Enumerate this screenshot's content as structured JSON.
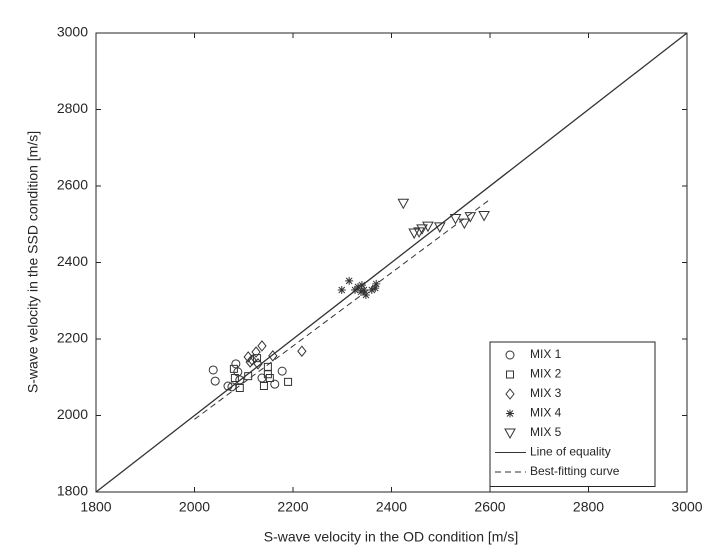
{
  "chart_data": {
    "type": "scatter",
    "x_label": "S-wave velocity in the OD condition [m/s]",
    "y_label": "S-wave velocity in the SSD condition [m/s]",
    "xlim": [
      1800,
      3000
    ],
    "ylim": [
      1800,
      3000
    ],
    "xticks": [
      1800,
      2000,
      2200,
      2400,
      2600,
      2800,
      3000
    ],
    "yticks": [
      1800,
      2000,
      2200,
      2400,
      2600,
      2800,
      3000
    ],
    "color": "#333333",
    "series": [
      {
        "name": "MIX 1",
        "marker": "circle",
        "x": [
          2038,
          2042,
          2068,
          2076,
          2084,
          2088,
          2092,
          2137,
          2163,
          2178
        ],
        "values": [
          2119,
          2090,
          2077,
          2075,
          2135,
          2114,
          2093,
          2098,
          2082,
          2116
        ]
      },
      {
        "name": "MIX 2",
        "marker": "square",
        "x": [
          2080,
          2082,
          2092,
          2109,
          2127,
          2141,
          2149,
          2149,
          2153,
          2190
        ],
        "values": [
          2122,
          2098,
          2072,
          2103,
          2150,
          2077,
          2108,
          2127,
          2098,
          2088
        ]
      },
      {
        "name": "MIX 3",
        "marker": "diamond",
        "x": [
          2109,
          2117,
          2125,
          2137,
          2159,
          2218,
          2113,
          2129
        ],
        "values": [
          2153,
          2145,
          2166,
          2182,
          2156,
          2168,
          2140,
          2135
        ]
      },
      {
        "name": "MIX 4",
        "marker": "star",
        "x": [
          2299,
          2314,
          2326,
          2332,
          2340,
          2344,
          2348,
          2360,
          2367,
          2369,
          2338
        ],
        "values": [
          2328,
          2352,
          2328,
          2336,
          2341,
          2328,
          2315,
          2328,
          2333,
          2344,
          2323
        ]
      },
      {
        "name": "MIX 5",
        "marker": "triangle-down",
        "x": [
          2424,
          2446,
          2456,
          2462,
          2474,
          2498,
          2530,
          2548,
          2560,
          2588
        ],
        "values": [
          2555,
          2477,
          2480,
          2488,
          2495,
          2493,
          2515,
          2503,
          2520,
          2523
        ]
      },
      {
        "name": "Line of equality",
        "marker": "solid",
        "x": [
          1800,
          3000
        ],
        "values": [
          1800,
          3000
        ]
      },
      {
        "name": "Best-fitting curve",
        "marker": "dashed",
        "x": [
          2000,
          2600
        ],
        "values": [
          1990,
          2565
        ]
      }
    ]
  }
}
